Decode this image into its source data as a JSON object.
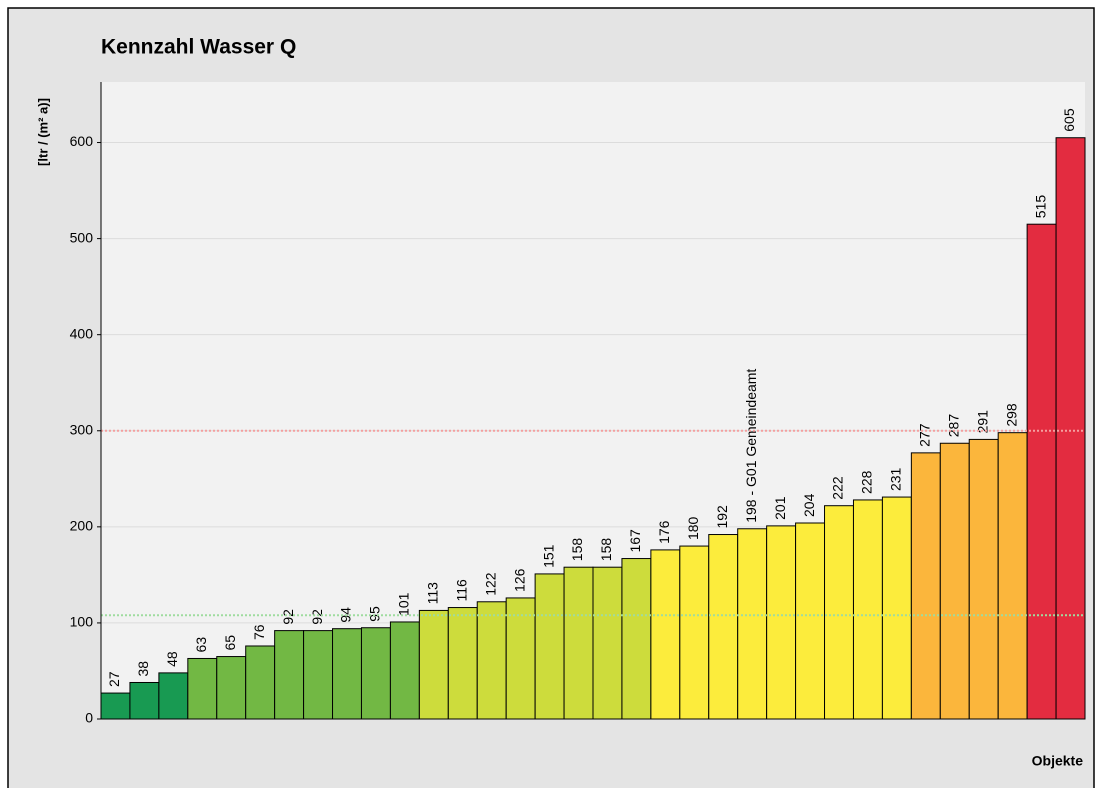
{
  "chart_data": {
    "type": "bar",
    "title": "Kennzahl Wasser Q",
    "y_label": "[ltr / (m² a)]",
    "x_label": "Objekte",
    "values": [
      27,
      38,
      48,
      63,
      65,
      76,
      92,
      92,
      94,
      95,
      101,
      113,
      116,
      122,
      126,
      151,
      158,
      158,
      167,
      176,
      180,
      192,
      198,
      201,
      204,
      222,
      228,
      231,
      277,
      287,
      291,
      298,
      515,
      605
    ],
    "value_labels": [
      "27",
      "38",
      "48",
      "63",
      "65",
      "76",
      "92",
      "92",
      "94",
      "95",
      "101",
      "113",
      "116",
      "122",
      "126",
      "151",
      "158",
      "158",
      "167",
      "176",
      "180",
      "192",
      "198 - G01 Gemeindeamt",
      "201",
      "204",
      "222",
      "228",
      "231",
      "277",
      "287",
      "291",
      "298",
      "515",
      "605"
    ],
    "colors": [
      "#189a52",
      "#189a52",
      "#189a52",
      "#72b844",
      "#72b844",
      "#72b844",
      "#72b844",
      "#72b844",
      "#72b844",
      "#72b844",
      "#72b844",
      "#cddc3c",
      "#cddc3c",
      "#cddc3c",
      "#cddc3c",
      "#cddc3c",
      "#cddc3c",
      "#cddc3c",
      "#cddc3c",
      "#fcec3c",
      "#fcec3c",
      "#fcec3c",
      "#fcec3c",
      "#fcec3c",
      "#fcec3c",
      "#fcec3c",
      "#fcec3c",
      "#fcec3c",
      "#fbb63c",
      "#fbb63c",
      "#fbb63c",
      "#fbb63c",
      "#e32c40",
      "#e32c40"
    ],
    "ylim": [
      0,
      663
    ],
    "yticks": [
      0,
      100,
      200,
      300,
      400,
      500,
      600
    ],
    "grid": true,
    "reference_lines": [
      {
        "value": 300,
        "color": "#f4a0a0"
      },
      {
        "value": 108,
        "color": "#9fdc9f"
      }
    ]
  }
}
